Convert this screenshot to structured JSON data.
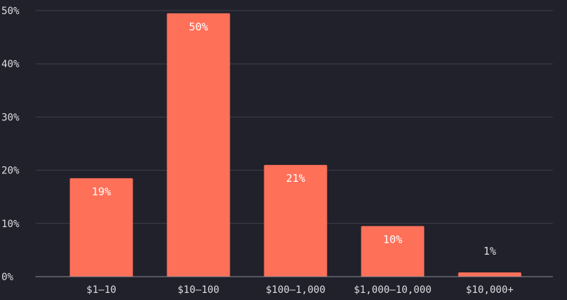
{
  "chart_data": {
    "type": "bar",
    "title": "",
    "xlabel": "",
    "ylabel": "",
    "categories": [
      "$1–10",
      "$10–100",
      "$100–1,000",
      "$1,000–10,000",
      "$10,000+"
    ],
    "values": [
      18.5,
      49.5,
      21,
      9.5,
      0.8
    ],
    "data_labels": [
      "19%",
      "50%",
      "21%",
      "10%",
      "1%"
    ],
    "ylim": [
      0,
      50
    ],
    "yticks": [
      0,
      10,
      20,
      30,
      40,
      50
    ],
    "ytick_labels": [
      "0%",
      "10%",
      "20%",
      "30%",
      "40%",
      "50%"
    ],
    "grid": true,
    "legend": "none",
    "colors": {
      "background": "#21212b",
      "bar": "#ff7059",
      "grid": "#41414d",
      "text": "#dcdce2"
    }
  }
}
